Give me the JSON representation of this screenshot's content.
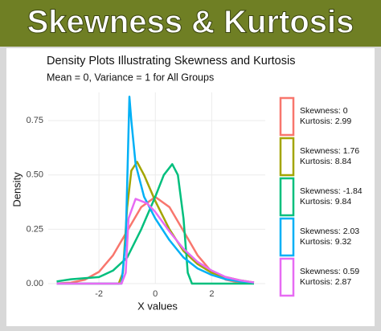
{
  "header": {
    "title": "Skewness & Kurtosis"
  },
  "chart_data": {
    "type": "line",
    "title": "Density Plots Illustrating Skewness and Kurtosis",
    "subtitle": "Mean = 0, Variance = 1 for All Groups",
    "x_label": "X values",
    "y_label": "Density",
    "xlim": [
      -3.8,
      3.9
    ],
    "ylim": [
      0,
      0.88
    ],
    "xticks": [
      -2,
      0,
      2
    ],
    "yticks": [
      {
        "value": 0,
        "label": "0.00"
      },
      {
        "value": 0.25,
        "label": "0.25"
      },
      {
        "value": 0.5,
        "label": "0.50"
      },
      {
        "value": 0.75,
        "label": "0.75"
      }
    ],
    "grid": true,
    "legend": "right",
    "series": [
      {
        "name": [
          "Skewness: 0",
          "Kurtosis: 2.99"
        ],
        "color": "#F8766D",
        "x": [
          -3.5,
          -3,
          -2.5,
          -2,
          -1.5,
          -1,
          -0.5,
          0,
          0.5,
          1,
          1.5,
          2,
          2.5,
          3,
          3.5
        ],
        "values": [
          0.001,
          0.004,
          0.018,
          0.054,
          0.13,
          0.242,
          0.352,
          0.399,
          0.352,
          0.242,
          0.13,
          0.054,
          0.018,
          0.004,
          0.001
        ]
      },
      {
        "name": [
          "Skewness: 1.76",
          "Kurtosis: 8.84"
        ],
        "color": "#A3A500",
        "x": [
          -3.5,
          -1.3,
          -1.15,
          -1,
          -0.85,
          -0.65,
          -0.4,
          0,
          0.5,
          1,
          1.5,
          2,
          2.5,
          3,
          3.5
        ],
        "values": [
          0,
          0,
          0.05,
          0.35,
          0.52,
          0.56,
          0.5,
          0.38,
          0.25,
          0.15,
          0.09,
          0.05,
          0.03,
          0.015,
          0.005
        ]
      },
      {
        "name": [
          "Skewness: -1.84",
          "Kurtosis: 9.84"
        ],
        "color": "#00BF7D",
        "x": [
          -3.5,
          -3,
          -2,
          -1.5,
          -1,
          -0.5,
          0,
          0.3,
          0.6,
          0.8,
          1,
          1.15,
          1.3,
          3.5
        ],
        "values": [
          0.01,
          0.02,
          0.03,
          0.06,
          0.12,
          0.25,
          0.4,
          0.5,
          0.55,
          0.5,
          0.3,
          0.05,
          0,
          0
        ]
      },
      {
        "name": [
          "Skewness: 2.03",
          "Kurtosis: 9.32"
        ],
        "color": "#00B0F6",
        "x": [
          -3.5,
          -1.2,
          -1.05,
          -0.97,
          -0.92,
          -0.85,
          -0.7,
          -0.4,
          0,
          0.5,
          1,
          1.5,
          2,
          2.5,
          3,
          3.5
        ],
        "values": [
          0,
          0,
          0.2,
          0.6,
          0.86,
          0.75,
          0.55,
          0.4,
          0.3,
          0.2,
          0.12,
          0.07,
          0.04,
          0.02,
          0.01,
          0.005
        ]
      },
      {
        "name": [
          "Skewness: 0.59",
          "Kurtosis: 2.87"
        ],
        "color": "#E76BF3",
        "x": [
          -3.5,
          -1.2,
          -1.05,
          -0.95,
          -0.7,
          -0.3,
          0,
          0.5,
          1,
          1.5,
          2,
          2.5,
          3,
          3.5
        ],
        "values": [
          0,
          0,
          0.05,
          0.3,
          0.39,
          0.37,
          0.33,
          0.24,
          0.16,
          0.1,
          0.06,
          0.03,
          0.015,
          0.005
        ]
      }
    ]
  }
}
